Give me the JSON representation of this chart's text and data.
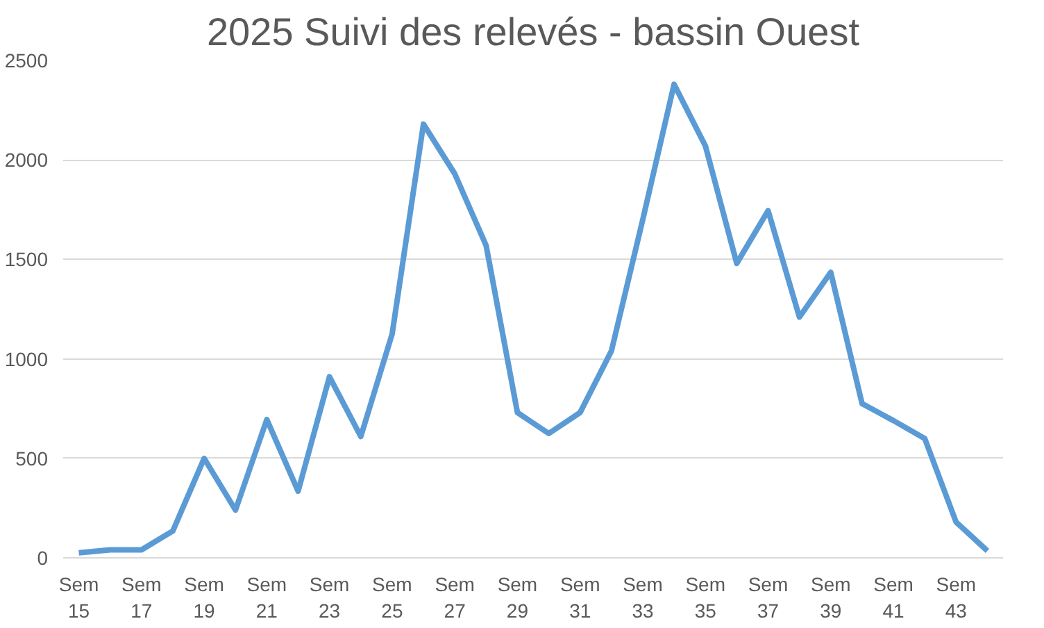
{
  "chart_data": {
    "type": "line",
    "title": "2025 Suivi des relevés - bassin Ouest",
    "categories": [
      "Sem 15",
      null,
      "Sem 17",
      null,
      "Sem 19",
      null,
      "Sem 21",
      null,
      "Sem 23",
      null,
      "Sem 25",
      null,
      "Sem 27",
      null,
      "Sem 29",
      null,
      "Sem 31",
      null,
      "Sem 33",
      null,
      "Sem 35",
      null,
      "Sem 37",
      null,
      "Sem 39",
      null,
      "Sem 41",
      null,
      "Sem 43",
      null
    ],
    "series": [
      {
        "color": "#5b9bd5",
        "values": [
          25,
          40,
          40,
          135,
          500,
          240,
          695,
          335,
          910,
          610,
          1125,
          2180,
          1930,
          1570,
          730,
          625,
          730,
          1040,
          1700,
          2380,
          2070,
          1480,
          1745,
          1210,
          1435,
          775,
          690,
          600,
          180,
          35
        ]
      }
    ],
    "ylim": [
      0,
      2500
    ],
    "yticks": [
      0,
      500,
      1000,
      1500,
      2000,
      2500
    ],
    "grid": "y",
    "marker": "none",
    "line_style": "solid"
  }
}
